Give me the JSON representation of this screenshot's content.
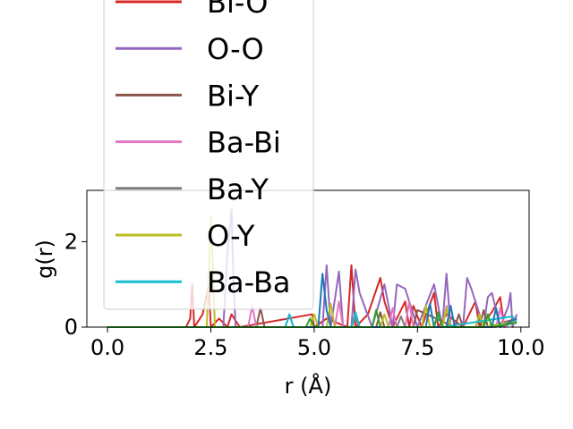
{
  "chart_data": {
    "type": "line",
    "title": "",
    "xlabel": "r (Å)",
    "ylabel": "g(r)",
    "xlim": [
      -0.5,
      10.2
    ],
    "ylim": [
      0,
      3.2
    ],
    "xticks": [
      0.0,
      2.5,
      5.0,
      7.5,
      10.0
    ],
    "xtick_labels": [
      "0.0",
      "2.5",
      "5.0",
      "7.5",
      "10.0"
    ],
    "yticks": [
      0,
      2
    ],
    "ytick_labels": [
      "0",
      "2"
    ],
    "grid": false,
    "legend_placement": "upper-center (overflowing above axes)",
    "series": [
      {
        "name": "Bi-O",
        "color": "#d62728",
        "x": [
          0,
          1.9,
          2.0,
          2.05,
          2.1,
          2.3,
          2.45,
          2.5,
          2.7,
          2.9,
          3.0,
          3.2,
          4.95,
          5.0,
          5.3,
          5.8,
          5.9,
          6.0,
          6.3,
          6.6,
          6.7,
          6.9,
          7.2,
          7.3,
          7.4,
          7.6,
          7.9,
          8.0,
          8.2,
          8.6,
          8.9,
          9.0,
          9.3,
          9.5,
          9.6,
          9.9
        ],
        "y": [
          0,
          0,
          0.2,
          1.0,
          0,
          0.3,
          1.0,
          0,
          0.2,
          0,
          0.3,
          0,
          0.3,
          0,
          0.2,
          0,
          1.45,
          0,
          0.3,
          1.15,
          0.6,
          0,
          0.6,
          0,
          0.5,
          0,
          0.8,
          0,
          0.3,
          0,
          0.6,
          0,
          0.35,
          0.7,
          0,
          0.2
        ]
      },
      {
        "name": "O-O",
        "color": "#9467bd",
        "x": [
          0,
          2.8,
          2.9,
          3.0,
          3.05,
          3.1,
          5.2,
          5.3,
          5.4,
          5.6,
          5.7,
          5.9,
          6.0,
          6.1,
          6.4,
          6.7,
          6.9,
          7.0,
          7.2,
          7.5,
          7.9,
          8.1,
          8.2,
          8.3,
          8.6,
          8.7,
          8.8,
          9.1,
          9.2,
          9.3,
          9.5,
          9.7,
          9.75,
          9.8,
          9.9
        ],
        "y": [
          0,
          0,
          1.7,
          2.75,
          1.0,
          0,
          0,
          1.45,
          0,
          1.3,
          0,
          0,
          1.35,
          0.8,
          0,
          1.0,
          0,
          1.0,
          0.9,
          0,
          1.0,
          0,
          1.25,
          0,
          0,
          1.15,
          0.9,
          0,
          0.7,
          0.8,
          0,
          0.5,
          0.8,
          0,
          0.3
        ]
      },
      {
        "name": "Bi-Y",
        "color": "#8c564b",
        "x": [
          0,
          3.6,
          3.7,
          3.8,
          4.3,
          4.4,
          4.5,
          5.0,
          6.5,
          6.6,
          6.7,
          7.4,
          7.5,
          8.4,
          8.5,
          8.6,
          9.0,
          9.1,
          9.2,
          9.9
        ],
        "y": [
          0,
          0,
          0.45,
          0,
          0,
          0.3,
          0,
          0,
          0,
          0.35,
          0,
          0,
          0.4,
          0,
          0.3,
          0,
          0,
          0.4,
          0,
          0.2
        ]
      },
      {
        "name": "Ba-Bi",
        "color": "#e377c2",
        "x": [
          0,
          3.4,
          3.5,
          3.6,
          5.5,
          5.6,
          5.7,
          6.8,
          6.9,
          7.0,
          7.2,
          7.3,
          7.4,
          8.1,
          8.2,
          8.3,
          9.4,
          9.5,
          9.6,
          9.9
        ],
        "y": [
          0,
          0,
          0.5,
          0,
          0,
          0.6,
          0,
          0,
          0.45,
          0,
          0,
          0.6,
          0,
          0,
          0.5,
          0,
          0,
          0.45,
          0,
          0.2
        ]
      },
      {
        "name": "Ba-Y",
        "color": "#7f7f7f",
        "x": [
          0,
          5.9,
          6.0,
          6.1,
          7.0,
          7.1,
          7.2,
          8.9,
          9.0,
          9.1,
          9.9
        ],
        "y": [
          0,
          0,
          0.2,
          0,
          0,
          0.25,
          0,
          0,
          0.2,
          0,
          0.1
        ]
      },
      {
        "name": "O-Y",
        "color": "#bcbd22",
        "x": [
          0,
          2.4,
          2.5,
          2.6,
          4.9,
          5.0,
          5.1,
          5.3,
          5.4,
          5.5,
          6.6,
          6.7,
          6.8,
          7.6,
          7.7,
          7.8,
          8.1,
          8.2,
          8.3,
          8.9,
          9.0,
          9.1,
          9.9
        ],
        "y": [
          0,
          0,
          2.6,
          0,
          0,
          0.3,
          0,
          0,
          0.55,
          0,
          0,
          0.3,
          0,
          0,
          0.5,
          0,
          0,
          0.45,
          0,
          0,
          0.3,
          0,
          0.15
        ]
      },
      {
        "name": "Ba-Ba",
        "color": "#17becf",
        "x": [
          0,
          4.3,
          4.4,
          4.5,
          5.9,
          6.0,
          6.1,
          7.9,
          8.0,
          8.1,
          9.8,
          9.9
        ],
        "y": [
          0,
          0,
          0.3,
          0,
          0,
          0.35,
          0,
          0,
          0.3,
          0,
          0.25,
          0.1
        ]
      },
      {
        "name": "",
        "color": "#1f77b4",
        "x": [
          0,
          5.1,
          5.2,
          5.3,
          5.4,
          7.7,
          7.8,
          7.9,
          8.2,
          8.3,
          8.4,
          9.3,
          9.4,
          9.5,
          9.9
        ],
        "y": [
          0,
          0,
          1.25,
          0.4,
          0,
          0,
          0.55,
          0,
          0,
          0.5,
          0,
          0,
          0.45,
          0,
          0.2
        ]
      },
      {
        "name": "",
        "color": "#2ca02c",
        "x": [
          0,
          4.8,
          4.9,
          5.0,
          6.4,
          6.5,
          6.6,
          7.9,
          8.0,
          8.1,
          9.1,
          9.2,
          9.3,
          9.9
        ],
        "y": [
          0,
          0,
          0.2,
          0,
          0,
          0.4,
          0,
          0,
          0.35,
          0,
          0,
          0.3,
          0,
          0.1
        ]
      }
    ],
    "legend_order": [
      "Bi-O",
      "O-O",
      "Bi-Y",
      "Ba-Bi",
      "Ba-Y",
      "O-Y",
      "Ba-Ba"
    ]
  }
}
